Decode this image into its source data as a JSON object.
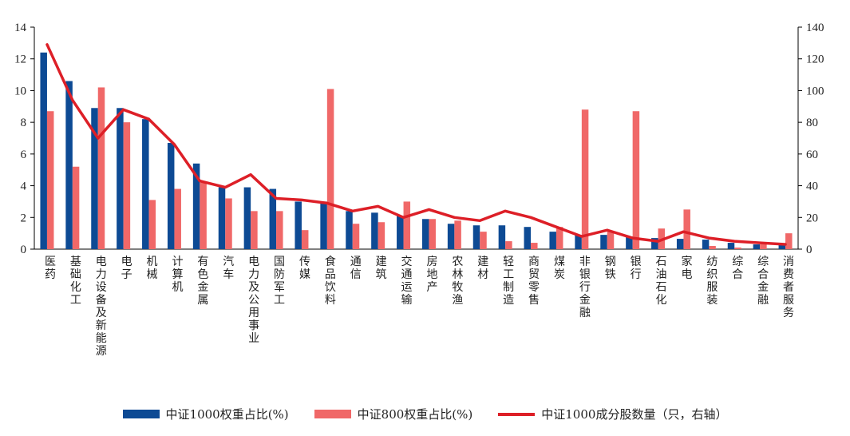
{
  "colors": {
    "series1": "#0d4a94",
    "series2": "#f06868",
    "line": "#dd1f27",
    "axis": "#000000"
  },
  "chart_data": {
    "type": "bar",
    "categories": [
      "医药",
      "基础化工",
      "电力设备及新能源",
      "电子",
      "机械",
      "计算机",
      "有色金属",
      "汽车",
      "电力及公用事业",
      "国防军工",
      "传媒",
      "食品饮料",
      "通信",
      "建筑",
      "交通运输",
      "房地产",
      "农林牧渔",
      "建材",
      "轻工制造",
      "商贸零售",
      "煤炭",
      "非银行金融",
      "钢铁",
      "银行",
      "石油石化",
      "家电",
      "纺织服装",
      "综合",
      "综合金融",
      "消费者服务"
    ],
    "series": [
      {
        "name": "中证1000权重占比(%)",
        "type": "bar",
        "axis": "left",
        "values": [
          12.4,
          10.6,
          8.9,
          8.9,
          8.2,
          6.7,
          5.4,
          3.9,
          3.9,
          3.8,
          3.0,
          3.0,
          2.4,
          2.3,
          2.1,
          1.9,
          1.6,
          1.5,
          1.5,
          1.4,
          1.1,
          0.9,
          0.9,
          0.8,
          0.7,
          0.65,
          0.6,
          0.4,
          0.3,
          0.3
        ]
      },
      {
        "name": "中证800权重占比(%)",
        "type": "bar",
        "axis": "left",
        "values": [
          8.7,
          5.2,
          10.2,
          8.0,
          3.1,
          3.8,
          4.2,
          3.2,
          2.4,
          2.4,
          1.2,
          10.1,
          1.6,
          1.7,
          3.0,
          1.9,
          1.8,
          1.1,
          0.5,
          0.4,
          1.4,
          8.8,
          1.1,
          8.7,
          1.3,
          2.5,
          0.2,
          0.1,
          0.3,
          1.0
        ]
      },
      {
        "name": "中证1000成分股数量（只，右轴）",
        "type": "line",
        "axis": "right",
        "values": [
          129,
          94,
          70,
          88,
          82,
          66,
          43,
          39,
          47,
          32,
          31,
          29,
          24,
          27,
          20,
          25,
          20,
          18,
          24,
          20,
          14,
          8,
          12,
          7,
          5,
          11,
          7,
          5,
          4,
          3
        ]
      }
    ],
    "ylim_left": [
      0,
      14
    ],
    "ylim_right": [
      0,
      140
    ],
    "yticks_left": [
      "0",
      "2",
      "4",
      "6",
      "8",
      "10",
      "12",
      "14"
    ],
    "yticks_right": [
      "0",
      "20",
      "40",
      "60",
      "80",
      "100",
      "120",
      "140"
    ],
    "legend_position": "bottom",
    "grid": false
  }
}
